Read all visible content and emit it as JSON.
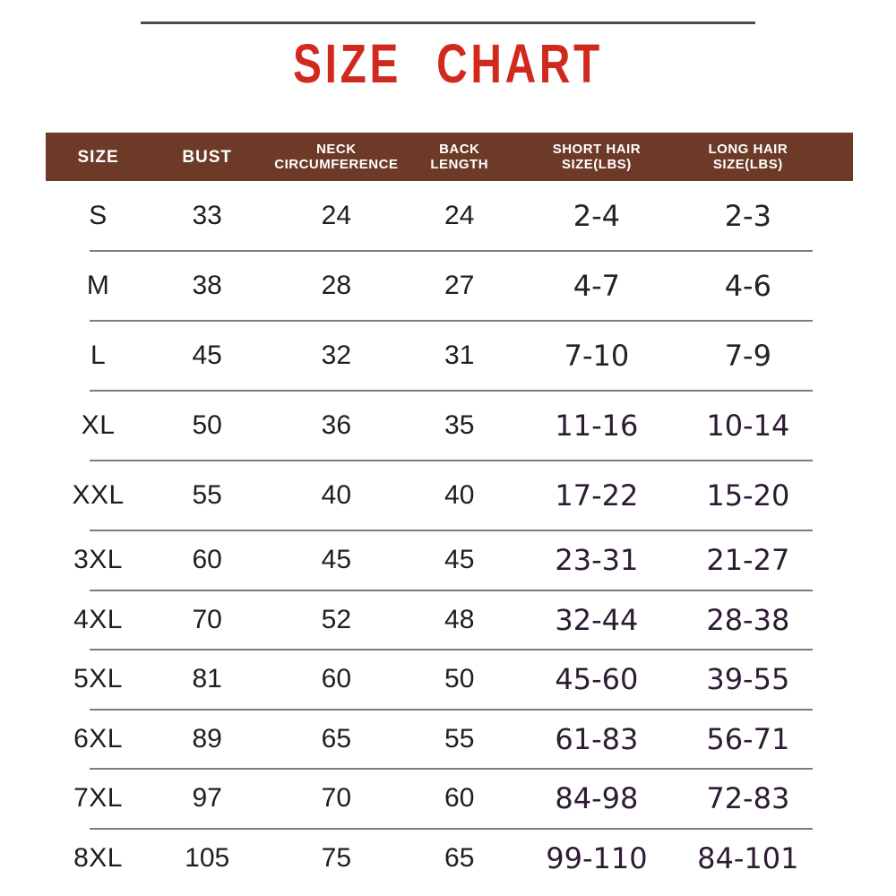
{
  "page": {
    "title": "SIZE CHART"
  },
  "colors": {
    "title_red": "#d2291f",
    "header_background": "#6e3a28",
    "header_text": "#ffffff",
    "body_text": "#1e1e20",
    "hair_size_text_plum": "#2c1b31",
    "row_divider": "#7c7c7c",
    "top_line": "#4a4a4a"
  },
  "table": {
    "columns": [
      {
        "label_lines": [
          "SIZE"
        ]
      },
      {
        "label_lines": [
          "BUST"
        ]
      },
      {
        "label_lines": [
          "NECK",
          "CIRCUMFERENCE"
        ]
      },
      {
        "label_lines": [
          "BACK",
          "LENGTH"
        ]
      },
      {
        "label_lines": [
          "SHORT HAIR",
          "SIZE(LBS)"
        ]
      },
      {
        "label_lines": [
          "LONG HAIR",
          "SIZE(LBS)"
        ]
      }
    ]
  },
  "chart_data": {
    "type": "table",
    "title": "SIZE CHART",
    "columns": [
      "SIZE",
      "BUST",
      "NECK CIRCUMFERENCE",
      "BACK LENGTH",
      "SHORT HAIR SIZE(LBS)",
      "LONG HAIR SIZE(LBS)"
    ],
    "rows": [
      [
        "S",
        "33",
        "24",
        "24",
        "2-4",
        "2-3"
      ],
      [
        "M",
        "38",
        "28",
        "27",
        "4-7",
        "4-6"
      ],
      [
        "L",
        "45",
        "32",
        "31",
        "7-10",
        "7-9"
      ],
      [
        "XL",
        "50",
        "36",
        "35",
        "11-16",
        "10-14"
      ],
      [
        "XXL",
        "55",
        "40",
        "40",
        "17-22",
        "15-20"
      ],
      [
        "3XL",
        "60",
        "45",
        "45",
        "23-31",
        "21-27"
      ],
      [
        "4XL",
        "70",
        "52",
        "48",
        "32-44",
        "28-38"
      ],
      [
        "5XL",
        "81",
        "60",
        "50",
        "45-60",
        "39-55"
      ],
      [
        "6XL",
        "89",
        "65",
        "55",
        "61-83",
        "56-71"
      ],
      [
        "7XL",
        "97",
        "70",
        "60",
        "84-98",
        "72-83"
      ],
      [
        "8XL",
        "105",
        "75",
        "65",
        "99-110",
        "84-101"
      ]
    ]
  }
}
